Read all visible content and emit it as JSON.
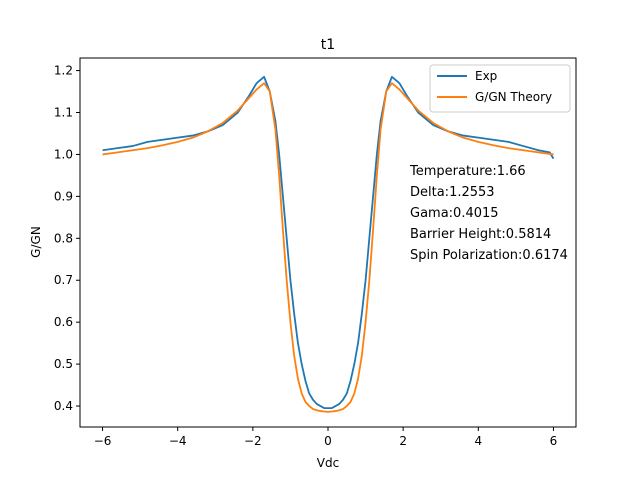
{
  "chart_data": {
    "type": "line",
    "title": "t1",
    "xlabel": "Vdc",
    "ylabel": "G/GN",
    "xlim": [
      -6.6,
      6.6
    ],
    "ylim": [
      0.35,
      1.23
    ],
    "xticks": [
      -6,
      -4,
      -2,
      0,
      2,
      4,
      6
    ],
    "xtick_labels": [
      "−6",
      "−4",
      "−2",
      "0",
      "2",
      "4",
      "6"
    ],
    "yticks": [
      0.4,
      0.5,
      0.6,
      0.7,
      0.8,
      0.9,
      1.0,
      1.1,
      1.2
    ],
    "ytick_labels": [
      "0.4",
      "0.5",
      "0.6",
      "0.7",
      "0.8",
      "0.9",
      "1.0",
      "1.1",
      "1.2"
    ],
    "grid": false,
    "legend_position": "top-right",
    "colors": {
      "exp": "#1f77b4",
      "theory": "#ff7f0e"
    },
    "series": [
      {
        "name": "Exp",
        "x": [
          -6.0,
          -5.6,
          -5.2,
          -4.8,
          -4.4,
          -4.0,
          -3.6,
          -3.2,
          -2.8,
          -2.4,
          -2.1,
          -1.9,
          -1.7,
          -1.55,
          -1.4,
          -1.3,
          -1.2,
          -1.1,
          -1.0,
          -0.9,
          -0.8,
          -0.7,
          -0.6,
          -0.5,
          -0.4,
          -0.3,
          -0.2,
          -0.1,
          0.0,
          0.1,
          0.2,
          0.3,
          0.4,
          0.5,
          0.6,
          0.7,
          0.8,
          0.9,
          1.0,
          1.1,
          1.2,
          1.3,
          1.4,
          1.55,
          1.7,
          1.9,
          2.1,
          2.4,
          2.8,
          3.2,
          3.6,
          4.0,
          4.4,
          4.8,
          5.2,
          5.6,
          5.9,
          6.0
        ],
        "y": [
          1.01,
          1.015,
          1.02,
          1.03,
          1.035,
          1.04,
          1.045,
          1.055,
          1.07,
          1.1,
          1.14,
          1.17,
          1.185,
          1.15,
          1.08,
          1.0,
          0.9,
          0.8,
          0.7,
          0.62,
          0.55,
          0.5,
          0.46,
          0.43,
          0.415,
          0.405,
          0.4,
          0.395,
          0.395,
          0.395,
          0.4,
          0.405,
          0.415,
          0.43,
          0.46,
          0.5,
          0.55,
          0.62,
          0.7,
          0.8,
          0.9,
          1.0,
          1.08,
          1.15,
          1.185,
          1.17,
          1.14,
          1.1,
          1.07,
          1.055,
          1.045,
          1.04,
          1.035,
          1.03,
          1.02,
          1.01,
          1.005,
          0.99
        ]
      },
      {
        "name": "G/GN Theory",
        "x": [
          -6.0,
          -5.6,
          -5.2,
          -4.8,
          -4.4,
          -4.0,
          -3.6,
          -3.2,
          -2.8,
          -2.4,
          -2.1,
          -1.9,
          -1.7,
          -1.55,
          -1.4,
          -1.3,
          -1.2,
          -1.1,
          -1.0,
          -0.9,
          -0.8,
          -0.7,
          -0.6,
          -0.5,
          -0.4,
          -0.3,
          -0.2,
          -0.1,
          0.0,
          0.1,
          0.2,
          0.3,
          0.4,
          0.5,
          0.6,
          0.7,
          0.8,
          0.9,
          1.0,
          1.1,
          1.2,
          1.3,
          1.4,
          1.55,
          1.7,
          1.9,
          2.1,
          2.4,
          2.8,
          3.2,
          3.6,
          4.0,
          4.4,
          4.8,
          5.2,
          5.6,
          6.0
        ],
        "y": [
          1.0,
          1.005,
          1.01,
          1.015,
          1.022,
          1.03,
          1.04,
          1.055,
          1.075,
          1.105,
          1.135,
          1.155,
          1.17,
          1.15,
          1.06,
          0.95,
          0.82,
          0.7,
          0.6,
          0.52,
          0.465,
          0.43,
          0.41,
          0.4,
          0.393,
          0.39,
          0.388,
          0.387,
          0.386,
          0.387,
          0.388,
          0.39,
          0.393,
          0.4,
          0.41,
          0.43,
          0.465,
          0.52,
          0.6,
          0.7,
          0.82,
          0.95,
          1.06,
          1.15,
          1.17,
          1.155,
          1.135,
          1.105,
          1.075,
          1.055,
          1.04,
          1.03,
          1.022,
          1.015,
          1.01,
          1.005,
          1.0
        ]
      }
    ],
    "annotations": [
      "Temperature:1.66",
      "Delta:1.2553",
      "Gama:0.4015",
      "Barrier Height:0.5814",
      "Spin Polarization:0.6174"
    ]
  }
}
